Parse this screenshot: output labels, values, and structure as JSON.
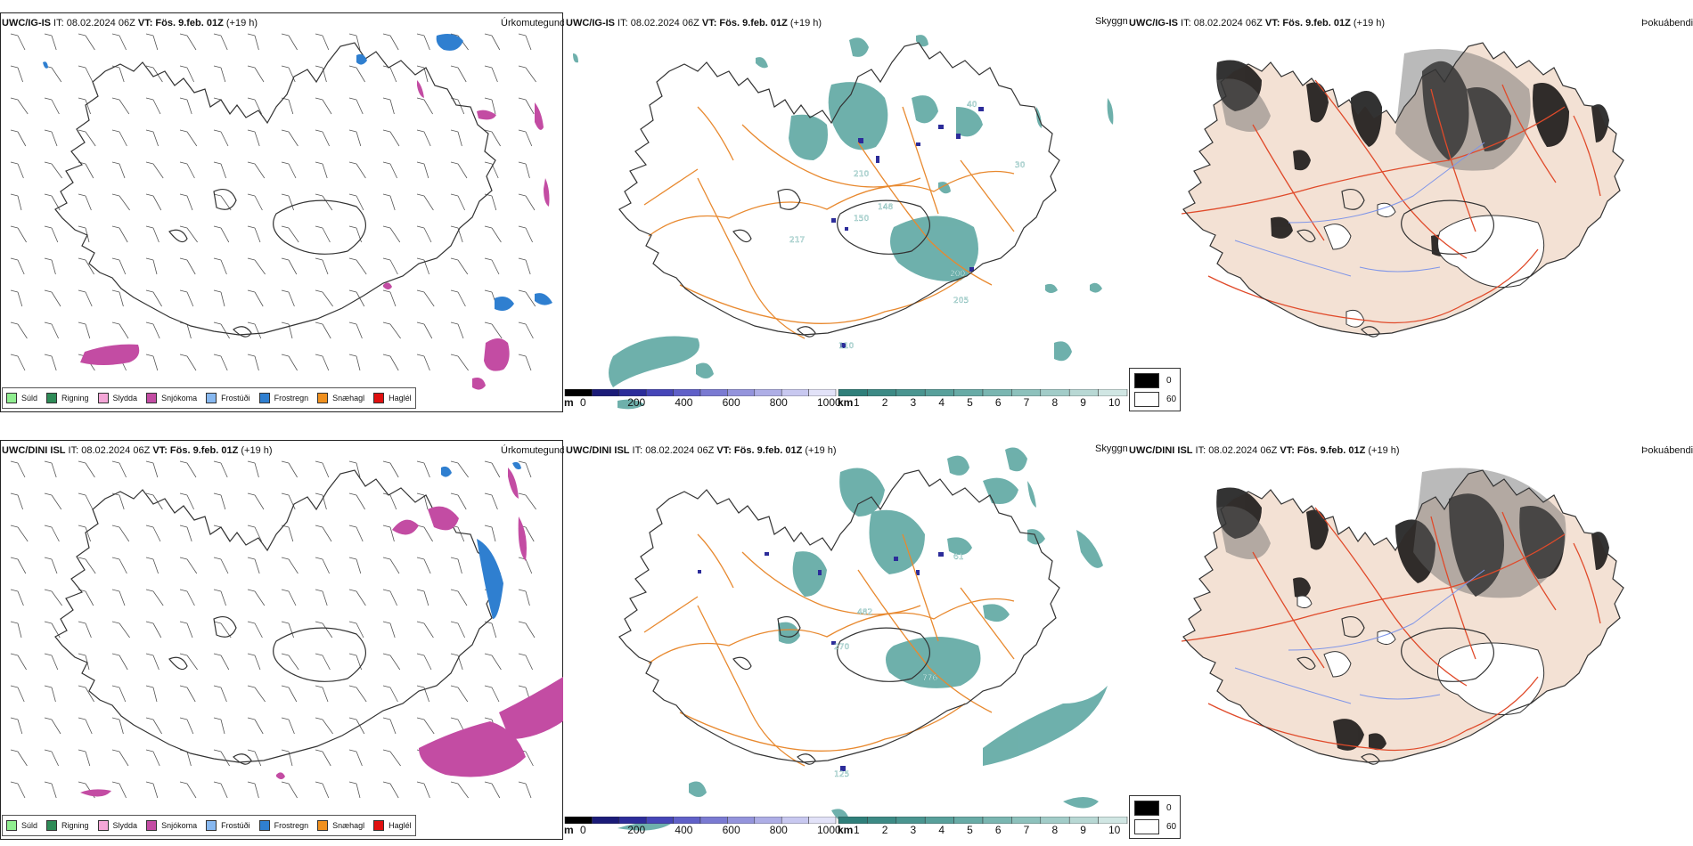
{
  "rows": [
    {
      "model": "UWC/IG-IS",
      "issue": " IT: 08.02.2024 06Z ",
      "vt_label": "VT:",
      "valid": " Fös. 9.feb. 01Z",
      "lead": " (+19 h)"
    },
    {
      "model": "UWC/DINI ISL",
      "issue": " IT: 08.02.2024 06Z ",
      "vt_label": "VT:",
      "valid": " Fös. 9.feb. 01Z",
      "lead": " (+19 h)"
    }
  ],
  "panel_titles": {
    "precip": "Úrkomutegund",
    "cloud": "Skyggni",
    "fog": "Þokuábendi"
  },
  "precip_legend": [
    {
      "label": "Súld",
      "color": "#90ee90"
    },
    {
      "label": "Rigning",
      "color": "#2e8b57"
    },
    {
      "label": "Slydda",
      "color": "#f4a6d7"
    },
    {
      "label": "Snjókoma",
      "color": "#c34ca3"
    },
    {
      "label": "Frostúði",
      "color": "#87b8f0"
    },
    {
      "label": "Frostregn",
      "color": "#2f7fd0"
    },
    {
      "label": "Snæhagl",
      "color": "#f0901e"
    },
    {
      "label": "Haglél",
      "color": "#e01010"
    }
  ],
  "cloudbase_bar": {
    "unit": "m",
    "ticks": [
      "0",
      "200",
      "400",
      "600",
      "800",
      "1000"
    ],
    "colors": [
      "#000000",
      "#1b1b78",
      "#2c2c9a",
      "#4646b8",
      "#6060c8",
      "#7a7ad2",
      "#9494dc",
      "#aeaee6",
      "#c8c8f0",
      "#e2e2f8"
    ]
  },
  "visibility_bar": {
    "unit": "km",
    "ticks": [
      "1",
      "2",
      "3",
      "4",
      "5",
      "6",
      "7",
      "8",
      "9",
      "10"
    ],
    "colors": [
      "#2f7f7a",
      "#3c8a85",
      "#4a9590",
      "#58a09b",
      "#68aba6",
      "#7ab6b1",
      "#8dc1bc",
      "#a2ccc8",
      "#b8d8d4",
      "#d0e6e3"
    ]
  },
  "fog_legend": [
    {
      "label": "0",
      "color": "#000000"
    },
    {
      "label": "60",
      "color": "#ffffff"
    }
  ],
  "cloud_labels": {
    "top": [
      "210",
      "148",
      "150",
      "217",
      "200",
      "205",
      "110",
      "40",
      "30"
    ],
    "bottom": [
      "482",
      "270",
      "776",
      "61",
      "125"
    ]
  },
  "colors": {
    "land_fill": "#f3e1d4",
    "roads_orange": "#e8892f",
    "roads_red": "#e04a2a",
    "teal": "#3e9690",
    "magenta": "#c34ca3",
    "blue": "#2f7fd0"
  }
}
